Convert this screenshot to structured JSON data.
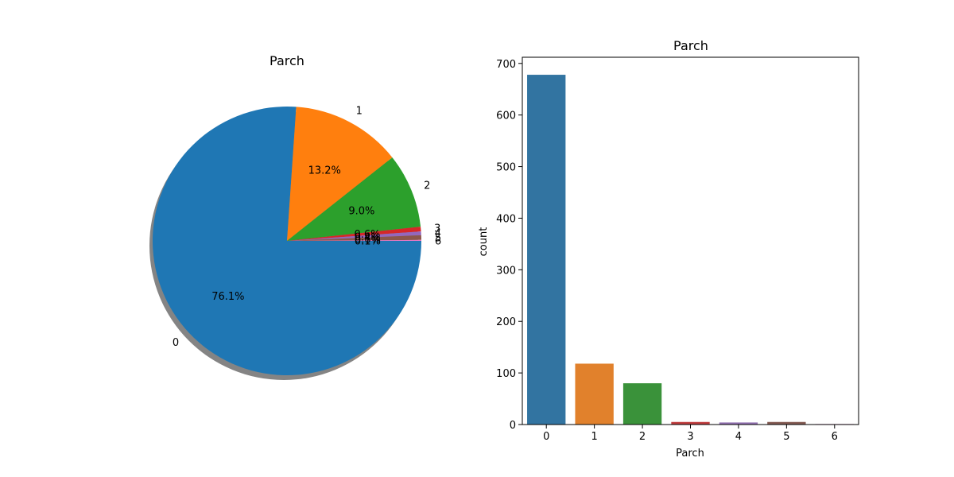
{
  "chart_data": [
    {
      "type": "pie",
      "title": "Parch",
      "labels": [
        "0",
        "1",
        "2",
        "3",
        "4",
        "5",
        "6"
      ],
      "values": [
        678,
        118,
        80,
        5,
        4,
        5,
        1
      ],
      "autopct": [
        "76.1%",
        "13.2%",
        "9.0%",
        "0.6%",
        "0.4%",
        "0.6%",
        "0.1%"
      ],
      "colors": [
        "#1f77b4",
        "#ff7f0e",
        "#2ca02c",
        "#d62728",
        "#9467bd",
        "#8c564b",
        "#e377c2"
      ],
      "shadow": true
    },
    {
      "type": "bar",
      "title": "Parch",
      "categories": [
        "0",
        "1",
        "2",
        "3",
        "4",
        "5",
        "6"
      ],
      "values": [
        678,
        118,
        80,
        5,
        4,
        5,
        1
      ],
      "colors": [
        "#3274a1",
        "#e1812c",
        "#3a923a",
        "#c03d3e",
        "#9372b2",
        "#845b53",
        "#d684bd"
      ],
      "xlabel": "Parch",
      "ylabel": "count",
      "ylim": [
        0,
        712
      ],
      "yticks": [
        0,
        100,
        200,
        300,
        400,
        500,
        600,
        700
      ],
      "grid": false
    }
  ]
}
